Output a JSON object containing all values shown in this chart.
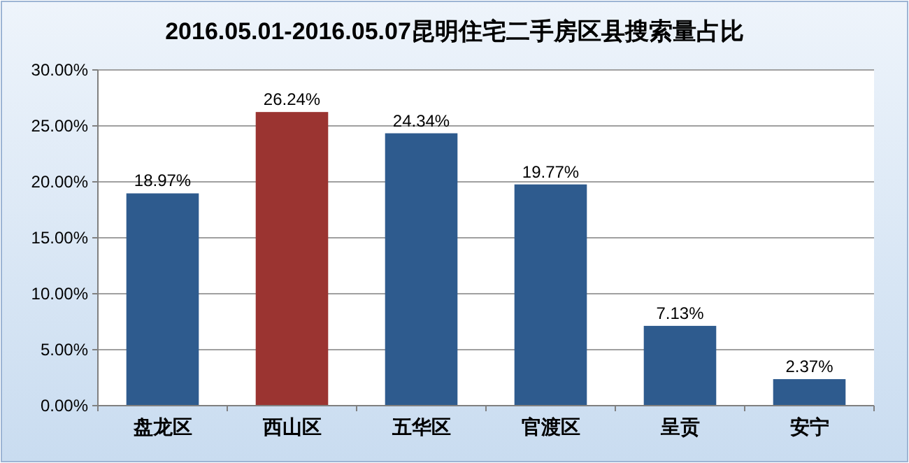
{
  "chart_data": {
    "type": "bar",
    "title": "2016.05.01-2016.05.07昆明住宅二手房区县搜索量占比",
    "categories": [
      "盘龙区",
      "西山区",
      "五华区",
      "官渡区",
      "呈贡",
      "安宁"
    ],
    "values": [
      18.97,
      26.24,
      24.34,
      19.77,
      7.13,
      2.37
    ],
    "colors": [
      "#2e5b8e",
      "#9b3431",
      "#2e5b8e",
      "#2e5b8e",
      "#2e5b8e",
      "#2e5b8e"
    ],
    "value_labels": [
      "18.97%",
      "26.24%",
      "24.34%",
      "19.77%",
      "7.13%",
      "2.37%"
    ],
    "ylim": [
      0,
      30
    ],
    "yticks": [
      {
        "value": 0,
        "label": "0.00%"
      },
      {
        "value": 5,
        "label": "5.00%"
      },
      {
        "value": 10,
        "label": "10.00%"
      },
      {
        "value": 15,
        "label": "15.00%"
      },
      {
        "value": 20,
        "label": "20.00%"
      },
      {
        "value": 25,
        "label": "25.00%"
      },
      {
        "value": 30,
        "label": "30.00%"
      }
    ],
    "grid": "y"
  }
}
